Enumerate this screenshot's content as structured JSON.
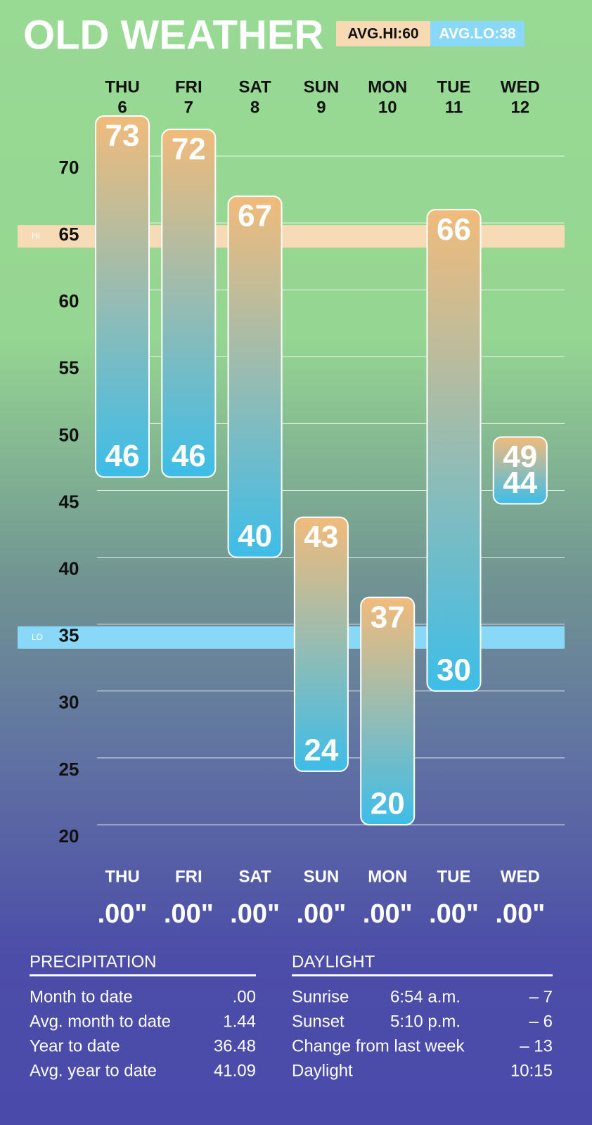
{
  "chart_data": {
    "type": "range",
    "title": "OLD WEATHER",
    "avg_hi": "AVG.HI:60",
    "avg_lo": "AVG.LO:38",
    "categories": [
      "THU",
      "FRI",
      "SAT",
      "SUN",
      "MON",
      "TUE",
      "WED"
    ],
    "dates": [
      6,
      7,
      8,
      9,
      10,
      11,
      12
    ],
    "series": [
      {
        "values": [
          73,
          72,
          67,
          43,
          37,
          66,
          49
        ]
      },
      {
        "values": [
          46,
          46,
          40,
          24,
          20,
          30,
          44
        ]
      }
    ],
    "colors": [
      "#f1bb7b",
      "#3dbde8"
    ],
    "ylim": [
      20,
      73
    ],
    "yticks": [
      20,
      25,
      30,
      35,
      40,
      45,
      50,
      55,
      60,
      65,
      70
    ],
    "grid": true,
    "bands": [
      {
        "label": "HI",
        "value": 64,
        "color": "#f7dbb7"
      },
      {
        "label": "LO",
        "value": 34,
        "color": "#8ad8f7"
      }
    ],
    "precip_values": [
      0,
      0,
      0,
      0,
      0,
      0,
      0
    ],
    "precip_labels": [
      ".00\"",
      ".00\"",
      ".00\"",
      ".00\"",
      ".00\"",
      ".00\"",
      ".00\""
    ]
  },
  "precipitation": {
    "title": "PRECIPITATION",
    "rows": [
      [
        "Month to date",
        ".00"
      ],
      [
        "Avg. month to date",
        "1.44"
      ],
      [
        "Year to date",
        "36.48"
      ],
      [
        "Avg. year to date",
        "41.09"
      ]
    ]
  },
  "daylight": {
    "title": "DAYLIGHT",
    "rows": [
      [
        "Sunrise",
        "6:54 a.m.",
        "– 7"
      ],
      [
        "Sunset",
        "5:10 p.m.",
        "– 6"
      ],
      [
        "Change from last week",
        "– 13"
      ],
      [
        "Daylight",
        "10:15"
      ]
    ]
  }
}
